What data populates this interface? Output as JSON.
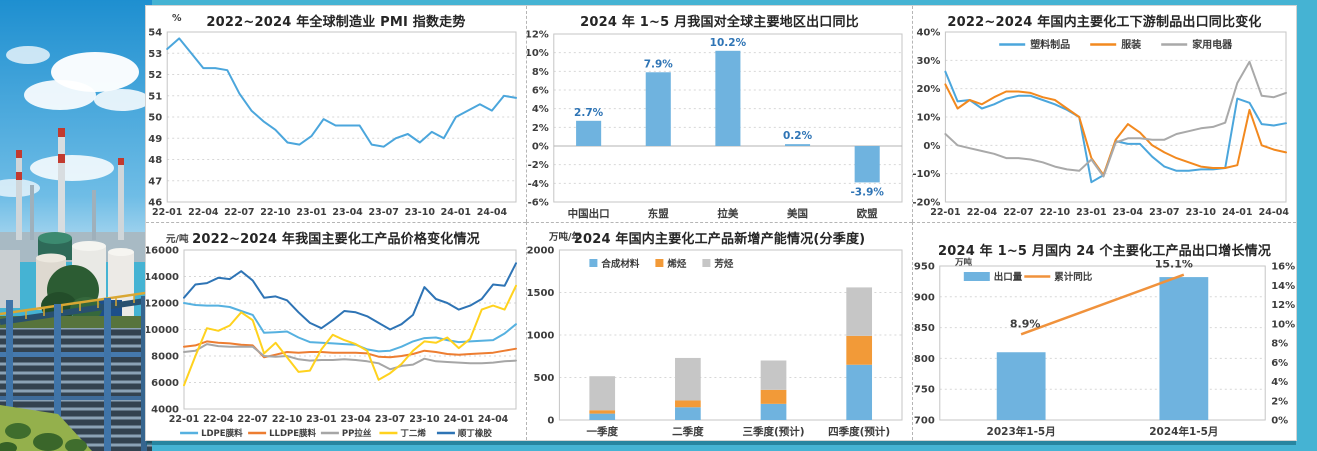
{
  "page": {
    "background": "#45B3D3",
    "panel_background": "#ffffff"
  },
  "chart_data": [
    {
      "type": "line",
      "title": "2022~2024 年全球制造业 PMI 指数走势",
      "unit": "%",
      "ylim": [
        46,
        54
      ],
      "ystep": 1,
      "yfmt": "plain",
      "grid": true,
      "legend": "none",
      "x_ticks": [
        "22-01",
        "22-04",
        "22-07",
        "22-10",
        "23-01",
        "23-04",
        "23-07",
        "23-10",
        "24-01",
        "24-04"
      ],
      "x_tick_every": 3,
      "series": [
        {
          "name": "全球制造业PMI",
          "color": "#4BA6DC",
          "values": [
            53.2,
            53.7,
            53.0,
            52.3,
            52.3,
            52.2,
            51.1,
            50.3,
            49.8,
            49.4,
            48.8,
            48.7,
            49.1,
            49.9,
            49.6,
            49.6,
            49.6,
            48.7,
            48.6,
            49.0,
            49.2,
            48.8,
            49.3,
            49.0,
            50.0,
            50.3,
            50.6,
            50.3,
            51.0,
            50.9
          ]
        }
      ]
    },
    {
      "type": "bar",
      "title": "2024 年 1~5 月我国对全球主要地区出口同比",
      "ylim": [
        -6,
        12
      ],
      "ystep": 2,
      "yfmt": "pct",
      "grid": true,
      "categories": [
        "中国出口",
        "东盟",
        "拉美",
        "美国",
        "欧盟"
      ],
      "values": [
        2.7,
        7.9,
        10.2,
        0.2,
        -3.9
      ],
      "labels": [
        "2.7%",
        "7.9%",
        "10.2%",
        "0.2%",
        "-3.9%"
      ],
      "bar_color": "#6FB3DF",
      "label_color": "#2E74B5"
    },
    {
      "type": "line",
      "title": "2022~2024 年国内主要化工下游制品出口同比变化",
      "ylim": [
        -20,
        40
      ],
      "ystep": 10,
      "yfmt": "pct",
      "grid": true,
      "legend": "top",
      "x_ticks": [
        "22-01",
        "22-04",
        "22-07",
        "22-10",
        "23-01",
        "23-04",
        "23-07",
        "23-10",
        "24-01",
        "24-04"
      ],
      "x_tick_every": 3,
      "series": [
        {
          "name": "塑料制品",
          "color": "#4BA6DC",
          "values": [
            26,
            15.5,
            16,
            13,
            14.5,
            16.5,
            17.5,
            17.5,
            16,
            14.5,
            12.5,
            10,
            -13,
            -10.5,
            1.5,
            0.5,
            0.5,
            -4,
            -7.5,
            -9,
            -9,
            -8.5,
            -8.5,
            -8,
            16.5,
            15,
            7.5,
            7,
            7.8
          ]
        },
        {
          "name": "服装",
          "color": "#F2891F",
          "values": [
            21.5,
            13,
            16,
            14.5,
            17,
            19,
            19,
            18.5,
            17,
            16,
            13,
            10,
            -4.5,
            -10.5,
            2,
            7.5,
            4.5,
            0,
            -2.5,
            -4.5,
            -6,
            -7.5,
            -8,
            -8,
            -7,
            12.5,
            0,
            -1.5,
            -2.5
          ]
        },
        {
          "name": "家用电器",
          "color": "#A9A9A9",
          "values": [
            4,
            0,
            -1,
            -2,
            -3,
            -4.5,
            -4.5,
            -5,
            -6,
            -7.5,
            -8.5,
            -9,
            -5,
            -11,
            1,
            2.5,
            2.5,
            2,
            2,
            4,
            5,
            6,
            6.5,
            8,
            22,
            29.5,
            17.5,
            17,
            18.5
          ]
        }
      ]
    },
    {
      "type": "line",
      "title": "2022~2024 年我国主要化工产品价格变化情况",
      "unit": "元/吨",
      "ylim": [
        4000,
        16000
      ],
      "ystep": 2000,
      "yfmt": "plain",
      "grid": true,
      "legend": "bottom",
      "x_ticks": [
        "22-01",
        "22-04",
        "22-07",
        "22-10",
        "23-01",
        "23-04",
        "23-07",
        "23-10",
        "24-01",
        "24-04"
      ],
      "x_tick_every": 3,
      "series": [
        {
          "name": "LDPE膜料",
          "color": "#56B1E0",
          "values": [
            12000,
            11850,
            11800,
            11800,
            11700,
            11400,
            11100,
            9750,
            9800,
            9850,
            9400,
            9050,
            9000,
            8950,
            8900,
            8850,
            8500,
            8350,
            8400,
            8700,
            9100,
            9350,
            9400,
            9200,
            9050,
            9100,
            9150,
            9200,
            9700,
            10400
          ]
        },
        {
          "name": "LLDPE膜料",
          "color": "#ED7D31",
          "values": [
            8700,
            8800,
            9100,
            9000,
            8950,
            8850,
            8800,
            7900,
            8100,
            8300,
            8250,
            8300,
            8300,
            8250,
            8250,
            8250,
            8200,
            7950,
            7900,
            8000,
            8150,
            8400,
            8300,
            8150,
            8100,
            8150,
            8200,
            8250,
            8400,
            8550
          ]
        },
        {
          "name": "PP拉丝",
          "color": "#A6A6A6",
          "values": [
            8300,
            8400,
            8900,
            8750,
            8700,
            8700,
            8700,
            8000,
            7950,
            8000,
            7750,
            7650,
            7700,
            7700,
            7750,
            7700,
            7600,
            7450,
            7000,
            7250,
            7350,
            7800,
            7600,
            7550,
            7500,
            7450,
            7450,
            7500,
            7600,
            7650
          ]
        },
        {
          "name": "丁二烯",
          "color": "#FFD21E",
          "values": [
            5800,
            8000,
            10100,
            9900,
            10300,
            11300,
            10700,
            8200,
            9000,
            7900,
            6800,
            6900,
            8500,
            9600,
            9200,
            8900,
            8400,
            6200,
            6700,
            7400,
            8400,
            9100,
            9000,
            9400,
            8600,
            9300,
            11500,
            11800,
            11500,
            13300
          ]
        },
        {
          "name": "顺丁橡胶",
          "color": "#2E74B5",
          "values": [
            12400,
            13400,
            13500,
            13900,
            13800,
            14400,
            13700,
            12400,
            12500,
            12200,
            11300,
            10500,
            10100,
            10700,
            11400,
            11300,
            11000,
            10500,
            10000,
            10400,
            11100,
            13200,
            12300,
            12000,
            11500,
            11800,
            12300,
            13400,
            13300,
            15000
          ]
        }
      ]
    },
    {
      "type": "stacked",
      "title": "2024 年国内主要化工产品新增产能情况(分季度)",
      "unit": "万吨/年",
      "ylim": [
        0,
        2000
      ],
      "ystep": 500,
      "yfmt": "plain",
      "grid": true,
      "categories": [
        "一季度",
        "二季度",
        "三季度(预计)",
        "四季度(预计)"
      ],
      "series": [
        {
          "name": "合成材料",
          "color": "#6FB3DF",
          "values": [
            75,
            150,
            190,
            650
          ]
        },
        {
          "name": "烯烃",
          "color": "#F29A38",
          "values": [
            40,
            80,
            165,
            340
          ]
        },
        {
          "name": "芳烃",
          "color": "#C6C6C6",
          "values": [
            400,
            500,
            345,
            570
          ]
        }
      ]
    },
    {
      "type": "combo",
      "title": "2024 年 1~5 月国内 24 个主要化工产品出口增长情况",
      "unit": "万吨",
      "ylim": [
        700,
        950
      ],
      "ystep": 50,
      "yfmt": "plain",
      "grid": true,
      "y2lim": [
        0,
        16
      ],
      "y2step": 2,
      "categories": [
        "2023年1-5月",
        "2024年1-5月"
      ],
      "bar_values": [
        810,
        932
      ],
      "line_values": [
        8.9,
        15.1
      ],
      "line_labels": [
        "8.9%",
        "15.1%"
      ],
      "legend_names": [
        "出口量",
        "累计同比"
      ],
      "bar_color": "#6FB3DF",
      "line_color": "#F0923C"
    }
  ]
}
